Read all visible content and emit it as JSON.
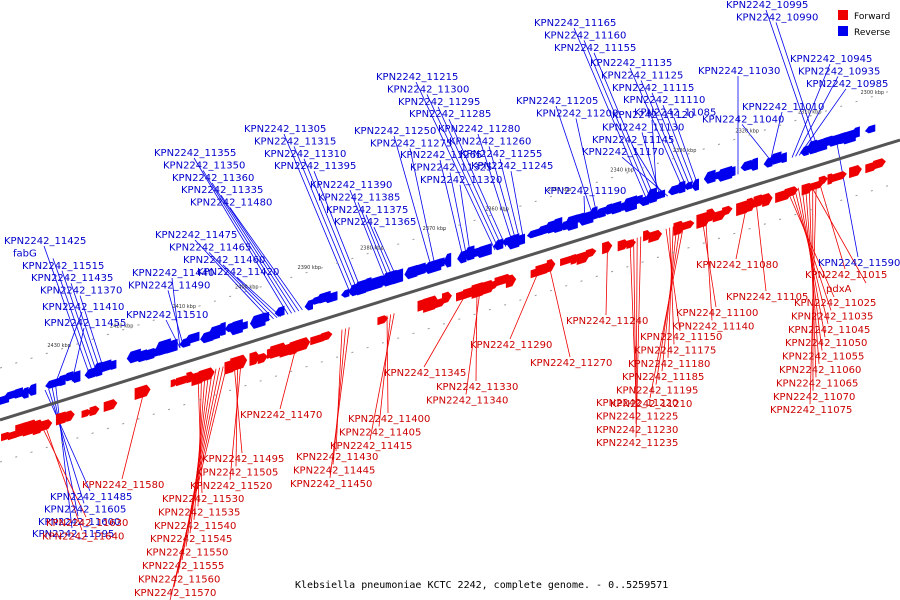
{
  "colors": {
    "forward": "#ee0000",
    "reverse": "#0000ee",
    "forward_label": "#cc0000",
    "reverse_label": "#0000cc",
    "axis": "#555555"
  },
  "legend": {
    "forward": "Forward",
    "reverse": "Reverse"
  },
  "caption": "Klebsiella pneumoniae KCTC 2242, complete genome. - 0..5259571",
  "ticks": [
    "2300 kbp",
    "2310 kbp",
    "2320 kbp",
    "2330 kbp",
    "2340 kbp",
    "2350 kbp",
    "2360 kbp",
    "2370 kbp",
    "2380 kbp",
    "2390 kbp",
    "2400 kbp",
    "2410 kbp",
    "2420 kbp",
    "2430 kbp"
  ],
  "reverse_labels": [
    "KPN2242_10995",
    "KPN2242_10990",
    "KPN2242_11165",
    "KPN2242_11160",
    "KPN2242_11155",
    "KPN2242_11135",
    "KPN2242_11125",
    "KPN2242_11115",
    "KPN2242_11110",
    "KPN2242_11085",
    "KPN2242_11030",
    "KPN2242_10945",
    "KPN2242_10935",
    "KPN2242_10985",
    "KPN2242_11010",
    "KPN2242_11040",
    "KPN2242_11120",
    "KPN2242_11130",
    "KPN2242_11145",
    "KPN2242_11170",
    "KPN2242_11205",
    "KPN2242_11200",
    "KPN2242_11190",
    "KPN2242_11215",
    "KPN2242_11300",
    "KPN2242_11295",
    "KPN2242_11285",
    "KPN2242_11280",
    "KPN2242_11260",
    "KPN2242_11255",
    "KPN2242_11245",
    "KPN2242_11250",
    "KPN2242_11275",
    "KPN2242_11265",
    "KPN2242_11325",
    "KPN2242_11320",
    "KPN2242_11305",
    "KPN2242_11315",
    "KPN2242_11310",
    "KPN2242_11395",
    "KPN2242_11390",
    "KPN2242_11385",
    "KPN2242_11375",
    "KPN2242_11365",
    "KPN2242_11355",
    "KPN2242_11350",
    "KPN2242_11360",
    "KPN2242_11335",
    "KPN2242_11480",
    "KPN2242_11475",
    "KPN2242_11465",
    "KPN2242_11460",
    "KPN2242_11420",
    "KPN2242_11440",
    "KPN2242_11490",
    "KPN2242_11425",
    "fabG",
    "KPN2242_11515",
    "KPN2242_11435",
    "KPN2242_11370",
    "KPN2242_11410",
    "KPN2242_11510",
    "KPN2242_11455",
    "KPN2242_11485",
    "KPN2242_11605",
    "KPN2242_11600",
    "KPN2242_11595",
    "KPN2242_11590",
    "KPN2242_11575",
    "KPN2242_11565",
    "ulaA",
    "KPN2242_11525",
    "KPN2242_11585",
    "KPN2242_11615",
    "KPN2242_11620",
    "KPN2242_11635",
    "KPN2242_11645",
    "KPN2242_11005"
  ],
  "forward_labels": [
    "KPN2242_11015",
    "pdxA",
    "KPN2242_11025",
    "KPN2242_11035",
    "KPN2242_11045",
    "KPN2242_11050",
    "KPN2242_11055",
    "KPN2242_11060",
    "KPN2242_11065",
    "KPN2242_11070",
    "KPN2242_11075",
    "KPN2242_11080",
    "KPN2242_11105",
    "KPN2242_11100",
    "KPN2242_11140",
    "KPN2242_11150",
    "KPN2242_11175",
    "KPN2242_11180",
    "KPN2242_11185",
    "KPN2242_11195",
    "KPN2242_11210",
    "KPN2242_11220",
    "KPN2242_11225",
    "KPN2242_11230",
    "KPN2242_11235",
    "KPN2242_11240",
    "KPN2242_11290",
    "KPN2242_11270",
    "KPN2242_11345",
    "KPN2242_11330",
    "KPN2242_11340",
    "KPN2242_11470",
    "KPN2242_11400",
    "KPN2242_11405",
    "KPN2242_11415",
    "KPN2242_11430",
    "KPN2242_11445",
    "KPN2242_11450",
    "KPN2242_11495",
    "KPN2242_11505",
    "KPN2242_11520",
    "KPN2242_11580",
    "KPN2242_11530",
    "KPN2242_11535",
    "KPN2242_11540",
    "KPN2242_11545",
    "KPN2242_11550",
    "KPN2242_11555",
    "KPN2242_11560",
    "KPN2242_11570",
    "KPN2242_11625",
    "KPN2242_11630",
    "KPN2242_11640"
  ]
}
